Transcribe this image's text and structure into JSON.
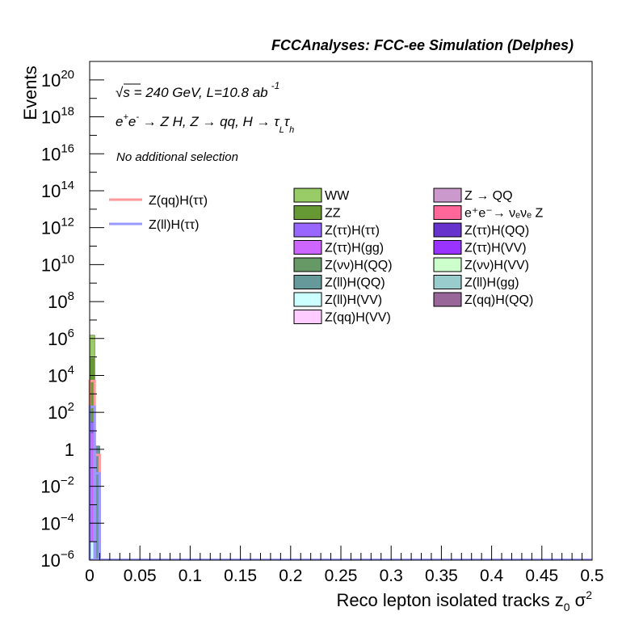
{
  "chart_data": {
    "type": "bar",
    "header": "FCCAnalyses: FCC-ee Simulation (Delphes)",
    "xlabel": "Reco lepton isolated tracks z",
    "xlabel_sub": "0",
    "xlabel_tail": " σ",
    "xlabel_sup": "2",
    "ylabel": "Events",
    "xlim": [
      0,
      0.5
    ],
    "ylim": [
      1e-06,
      1e+21
    ],
    "log_y": true,
    "grid": false,
    "x_ticks": [
      {
        "v": 0,
        "label": "0"
      },
      {
        "v": 0.05,
        "label": "0.05"
      },
      {
        "v": 0.1,
        "label": "0.1"
      },
      {
        "v": 0.15,
        "label": "0.15"
      },
      {
        "v": 0.2,
        "label": "0.2"
      },
      {
        "v": 0.25,
        "label": "0.25"
      },
      {
        "v": 0.3,
        "label": "0.3"
      },
      {
        "v": 0.35,
        "label": "0.35"
      },
      {
        "v": 0.4,
        "label": "0.4"
      },
      {
        "v": 0.45,
        "label": "0.45"
      },
      {
        "v": 0.5,
        "label": "0.5"
      }
    ],
    "y_ticks": [
      {
        "v": 1e-06,
        "base": "10",
        "exp": "−6"
      },
      {
        "v": 0.0001,
        "base": "10",
        "exp": "−4"
      },
      {
        "v": 0.01,
        "base": "10",
        "exp": "−2"
      },
      {
        "v": 1,
        "base": "1",
        "exp": ""
      },
      {
        "v": 100.0,
        "base": "10",
        "exp": "2"
      },
      {
        "v": 10000.0,
        "base": "10",
        "exp": "4"
      },
      {
        "v": 1000000.0,
        "base": "10",
        "exp": "6"
      },
      {
        "v": 100000000.0,
        "base": "10",
        "exp": "8"
      },
      {
        "v": 10000000000.0,
        "base": "10",
        "exp": "10"
      },
      {
        "v": 1000000000000.0,
        "base": "10",
        "exp": "12"
      },
      {
        "v": 100000000000000.0,
        "base": "10",
        "exp": "14"
      },
      {
        "v": 1e+16,
        "base": "10",
        "exp": "16"
      },
      {
        "v": 1e+18,
        "base": "10",
        "exp": "18"
      },
      {
        "v": 1e+20,
        "base": "10",
        "exp": "20"
      }
    ],
    "annotations": {
      "energy_sqrt": "√s",
      "energy_rest": " = 240 GeV, L=10.8 ab",
      "energy_sup": "-1",
      "process_a": "e",
      "process_a_sup": "+",
      "process_b": "e",
      "process_b_sup": "-",
      "process_rest": " → Z H, Z  → qq, H  → τ",
      "process_sub1": "L",
      "process_tau2": "τ",
      "process_sub2": "h",
      "selection": "No additional selection"
    },
    "signal_legend": [
      {
        "name": "Z(qq)H(ττ)",
        "color": "#ff9999"
      },
      {
        "name": "Z(ll)H(ττ)",
        "color": "#9999ff"
      }
    ],
    "background_legend": [
      {
        "name": "WW",
        "color": "#99cc66"
      },
      {
        "name": "Z → QQ",
        "color": "#cc99cc"
      },
      {
        "name": "ZZ",
        "color": "#669933"
      },
      {
        "name": "e⁺e⁻→ νₑνₑ Z",
        "color": "#ff6699"
      },
      {
        "name": "Z(ττ)H(ττ)",
        "color": "#9966ff"
      },
      {
        "name": "Z(ττ)H(QQ)",
        "color": "#6633cc"
      },
      {
        "name": "Z(ττ)H(gg)",
        "color": "#cc66ff"
      },
      {
        "name": "Z(ττ)H(VV)",
        "color": "#9933ff"
      },
      {
        "name": "Z(νν)H(QQ)",
        "color": "#669966"
      },
      {
        "name": "Z(νν)H(VV)",
        "color": "#ccffcc"
      },
      {
        "name": "Z(ll)H(QQ)",
        "color": "#669999"
      },
      {
        "name": "Z(ll)H(gg)",
        "color": "#99cccc"
      },
      {
        "name": "Z(ll)H(VV)",
        "color": "#ccffff"
      },
      {
        "name": "Z(qq)H(QQ)",
        "color": "#996699"
      },
      {
        "name": "Z(qq)H(VV)",
        "color": "#ffccff"
      }
    ],
    "series": [
      {
        "name": "WW",
        "color": "#99cc66",
        "bins": [
          {
            "x0": 0,
            "x1": 0.005,
            "y": 1500000.0
          }
        ]
      },
      {
        "name": "ZZ",
        "color": "#669933",
        "bins": [
          {
            "x0": 0,
            "x1": 0.005,
            "y": 80000.0
          }
        ]
      },
      {
        "name": "Z(ll)H(QQ)",
        "color": "#669999",
        "bins": [
          {
            "x0": 0,
            "x1": 0.005,
            "y": 1e-05
          },
          {
            "x0": 0.005,
            "x1": 0.01,
            "y": 1.5
          }
        ]
      },
      {
        "name": "Z(ττ)H(ττ)",
        "color": "#9966ff",
        "bins": [
          {
            "x0": 0,
            "x1": 0.005,
            "y": 30
          }
        ]
      },
      {
        "name": "Z(ττ)H(gg)",
        "color": "#cc66ff",
        "bins": [
          {
            "x0": 0,
            "x1": 0.005,
            "y": 8
          }
        ]
      },
      {
        "name": "Z(ll)H(VV)",
        "color": "#ccffff",
        "bins": [
          {
            "x0": 0,
            "x1": 0.005,
            "y": 1e-05
          }
        ]
      }
    ],
    "signal_series": [
      {
        "name": "Z(qq)H(ττ)",
        "color": "#ff9999",
        "bins": [
          {
            "x0": 0,
            "x1": 0.005,
            "y": 5000
          },
          {
            "x0": 0.005,
            "x1": 0.01,
            "y": 0.5
          }
        ]
      },
      {
        "name": "Z(ll)H(ττ)",
        "color": "#9999ff",
        "bins": [
          {
            "x0": 0,
            "x1": 0.005,
            "y": 200
          },
          {
            "x0": 0.005,
            "x1": 0.01,
            "y": 0.05
          }
        ]
      }
    ]
  }
}
